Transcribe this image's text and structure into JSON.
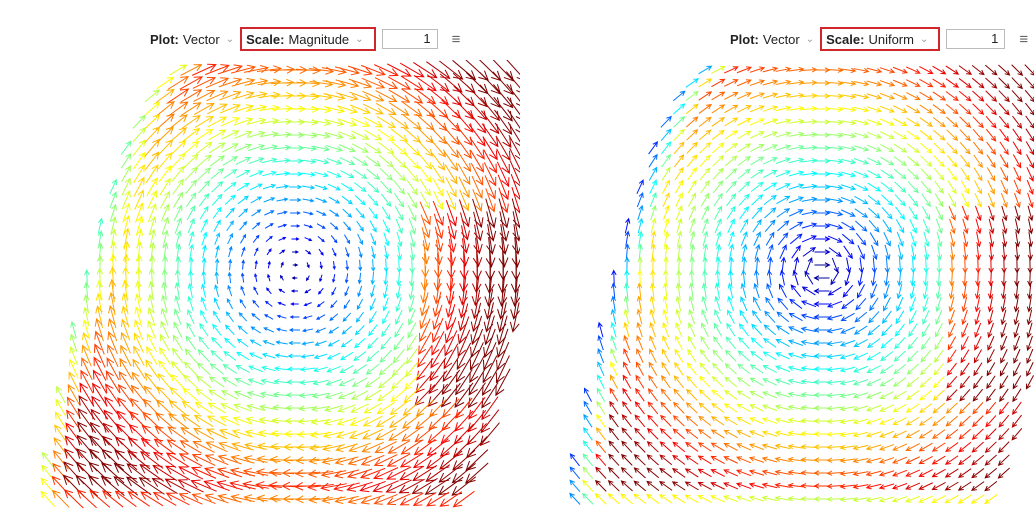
{
  "panels": [
    {
      "toolbar": {
        "plot_label": "Plot:",
        "plot_value": "Vector",
        "scale_label": "Scale:",
        "scale_value": "Magnitude",
        "factor": 1
      }
    },
    {
      "toolbar": {
        "plot_label": "Plot:",
        "plot_value": "Vector",
        "scale_label": "Scale:",
        "scale_value": "Uniform",
        "factor": 1
      }
    }
  ]
}
